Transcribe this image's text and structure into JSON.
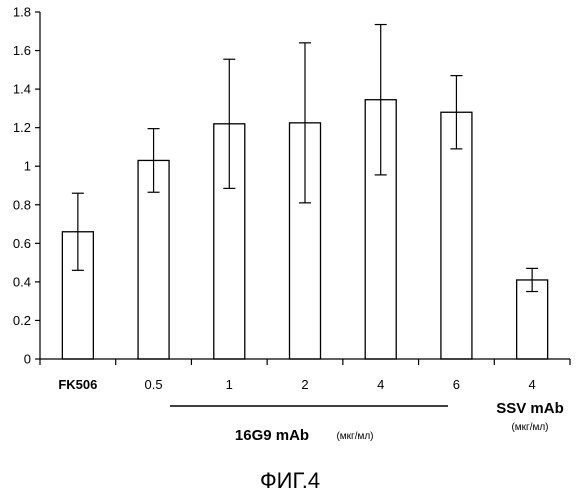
{
  "chart_data": {
    "type": "bar",
    "title": "",
    "xlabel": "",
    "ylabel": "",
    "ylim": [
      0,
      1.8
    ],
    "yticks": [
      0,
      0.2,
      0.4,
      0.6,
      0.8,
      1,
      1.2,
      1.4,
      1.6,
      1.8
    ],
    "ytick_labels": [
      "0",
      "0.2",
      "0.4",
      "0.6",
      "0.8",
      "1",
      "1.2",
      "1.4",
      "1.6",
      "1.8"
    ],
    "grid": false,
    "legend": "none",
    "categories": [
      "FK506",
      "0.5",
      "1",
      "2",
      "4",
      "6",
      "4"
    ],
    "values": [
      0.66,
      1.03,
      1.22,
      1.225,
      1.345,
      1.28,
      0.41
    ],
    "errors": [
      0.2,
      0.165,
      0.335,
      0.415,
      0.39,
      0.19,
      0.06
    ],
    "bar_color": "#ffffff",
    "edge_color": "#000000",
    "groups": [
      {
        "label": "16G9 mAb",
        "unit": "(мкг/мл)"
      },
      {
        "label": "SSV mAb",
        "unit": "(мкг/мл)"
      }
    ]
  },
  "figure_label": "ФИГ.4"
}
